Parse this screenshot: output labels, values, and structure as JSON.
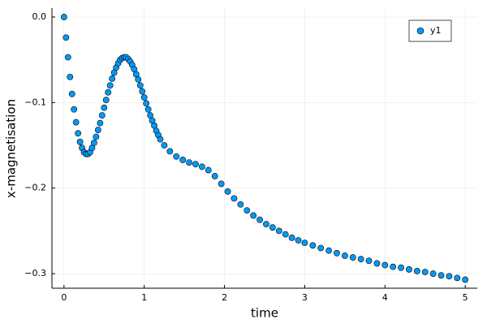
{
  "chart_data": {
    "type": "scatter",
    "x_label": "time",
    "y_label": "x-magnetisation",
    "legend_position": "top-right",
    "grid": true,
    "xlim": [
      -0.15,
      5.15
    ],
    "ylim": [
      -0.317,
      0.0104
    ],
    "xticks": [
      0,
      1,
      2,
      3,
      4,
      5
    ],
    "yticks": [
      {
        "value": 0.0,
        "label": "0.0"
      },
      {
        "value": -0.1,
        "label": "−0.1"
      },
      {
        "value": -0.2,
        "label": "−0.2"
      },
      {
        "value": -0.3,
        "label": "−0.3"
      }
    ],
    "x": [
      0,
      0.025,
      0.05,
      0.075,
      0.1,
      0.125,
      0.15,
      0.175,
      0.2,
      0.225,
      0.25,
      0.275,
      0.3,
      0.325,
      0.35,
      0.375,
      0.4,
      0.425,
      0.45,
      0.475,
      0.5,
      0.525,
      0.55,
      0.575,
      0.6,
      0.625,
      0.65,
      0.675,
      0.7,
      0.725,
      0.75,
      0.775,
      0.8,
      0.825,
      0.85,
      0.875,
      0.9,
      0.925,
      0.95,
      0.975,
      1.0,
      1.025,
      1.05,
      1.075,
      1.1,
      1.125,
      1.15,
      1.175,
      1.2,
      1.25,
      1.32,
      1.4,
      1.48,
      1.56,
      1.64,
      1.72,
      1.8,
      1.88,
      1.96,
      2.04,
      2.12,
      2.2,
      2.28,
      2.36,
      2.44,
      2.52,
      2.6,
      2.68,
      2.76,
      2.84,
      2.92,
      3.0,
      3.1,
      3.2,
      3.3,
      3.4,
      3.5,
      3.6,
      3.7,
      3.8,
      3.9,
      4.0,
      4.1,
      4.2,
      4.3,
      4.4,
      4.5,
      4.6,
      4.7,
      4.8,
      4.9,
      5.0
    ],
    "series": [
      {
        "name": "y1",
        "color": "#009af9",
        "values": [
          0,
          -0.024,
          -0.047,
          -0.07,
          -0.09,
          -0.108,
          -0.123,
          -0.136,
          -0.146,
          -0.153,
          -0.158,
          -0.16,
          -0.16,
          -0.158,
          -0.153,
          -0.147,
          -0.14,
          -0.132,
          -0.124,
          -0.115,
          -0.106,
          -0.097,
          -0.088,
          -0.08,
          -0.072,
          -0.065,
          -0.059,
          -0.054,
          -0.05,
          -0.048,
          -0.047,
          -0.047,
          -0.049,
          -0.052,
          -0.056,
          -0.061,
          -0.067,
          -0.073,
          -0.08,
          -0.087,
          -0.094,
          -0.101,
          -0.108,
          -0.115,
          -0.121,
          -0.127,
          -0.133,
          -0.138,
          -0.143,
          -0.15,
          -0.157,
          -0.163,
          -0.167,
          -0.17,
          -0.172,
          -0.175,
          -0.179,
          -0.186,
          -0.195,
          -0.204,
          -0.212,
          -0.219,
          -0.226,
          -0.232,
          -0.237,
          -0.242,
          -0.246,
          -0.25,
          -0.254,
          -0.258,
          -0.261,
          -0.264,
          -0.267,
          -0.27,
          -0.273,
          -0.276,
          -0.279,
          -0.281,
          -0.283,
          -0.285,
          -0.288,
          -0.29,
          -0.292,
          -0.293,
          -0.295,
          -0.297,
          -0.298,
          -0.3,
          -0.302,
          -0.303,
          -0.305,
          -0.307
        ]
      }
    ]
  }
}
